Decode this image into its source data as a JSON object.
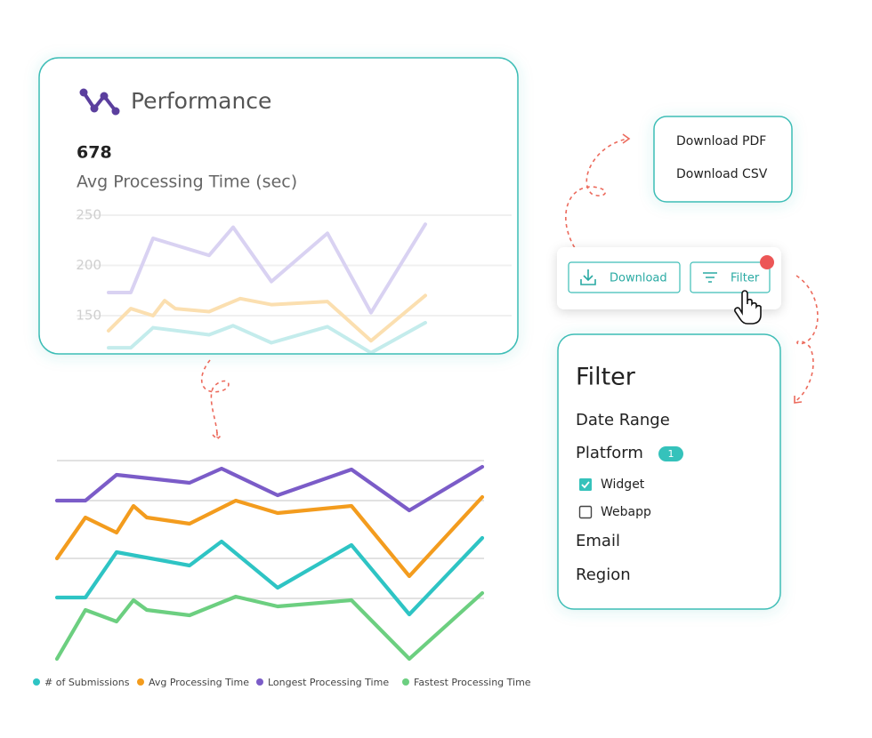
{
  "chart_data": [
    {
      "type": "line",
      "ylim": [
        110,
        260
      ],
      "yticks": [
        150,
        200,
        250
      ],
      "xlim": [
        0,
        360
      ],
      "grid": true,
      "series": [
        {
          "color": "#d9d2f2",
          "x": [
            0,
            25,
            50,
            113,
            140,
            183,
            246,
            295,
            356
          ],
          "values": [
            173,
            173,
            227,
            210,
            238,
            184,
            232,
            153,
            241
          ]
        },
        {
          "color": "#fbdfb0",
          "x": [
            0,
            25,
            50,
            63,
            75,
            113,
            148,
            183,
            246,
            295,
            356
          ],
          "values": [
            135,
            157,
            150,
            165,
            157,
            154,
            167,
            161,
            164,
            125,
            170
          ]
        },
        {
          "color": "#c4ecec",
          "x": [
            0,
            25,
            50,
            113,
            140,
            183,
            246,
            295,
            356
          ],
          "values": [
            118,
            118,
            138,
            131,
            140,
            123,
            139,
            113,
            143
          ]
        }
      ]
    },
    {
      "type": "line",
      "ylim": [
        0,
        260
      ],
      "xlim": [
        0,
        480
      ],
      "gridlines": [
        87,
        132,
        197,
        242
      ],
      "series": [
        {
          "name": "# of Submissions",
          "color": "#2ec4c4",
          "x": [
            0,
            32,
            67,
            149,
            185,
            248,
            331,
            396,
            478
          ],
          "values": [
            88,
            88,
            139,
            124,
            151,
            99,
            147,
            69,
            155
          ]
        },
        {
          "name": "Avg Processing Time",
          "color": "#f39c1e",
          "x": [
            0,
            32,
            67,
            86,
            101,
            149,
            201,
            248,
            331,
            396,
            478
          ],
          "values": [
            132,
            178,
            161,
            191,
            178,
            171,
            197,
            183,
            191,
            112,
            201
          ]
        },
        {
          "name": "Longest Processing Time",
          "color": "#7b5cc8",
          "x": [
            0,
            32,
            67,
            149,
            185,
            248,
            331,
            396,
            478
          ],
          "values": [
            197,
            197,
            226,
            217,
            233,
            203,
            232,
            186,
            235
          ]
        },
        {
          "name": "Fastest Processing Time",
          "color": "#6ccf80",
          "x": [
            0,
            32,
            67,
            86,
            101,
            149,
            201,
            248,
            331,
            396,
            478
          ],
          "values": [
            19,
            74,
            61,
            85,
            74,
            68,
            89,
            78,
            85,
            19,
            93
          ]
        }
      ]
    }
  ],
  "ui": {
    "performance_card": {
      "title": "Performance",
      "metric": 678,
      "metric_label": "Avg Processing Time (sec)"
    },
    "download_menu": {
      "items": [
        "Download PDF",
        "Download CSV"
      ]
    },
    "toolbar": {
      "download": "Download",
      "filter": "Filter"
    },
    "filter_panel": {
      "title": "Filter",
      "sections": [
        "Date Range",
        "Platform",
        "Email",
        "Region"
      ],
      "platform_count": "1",
      "options": [
        {
          "label": "Widget",
          "checked": true
        },
        {
          "label": "Webapp",
          "checked": false
        }
      ]
    }
  }
}
